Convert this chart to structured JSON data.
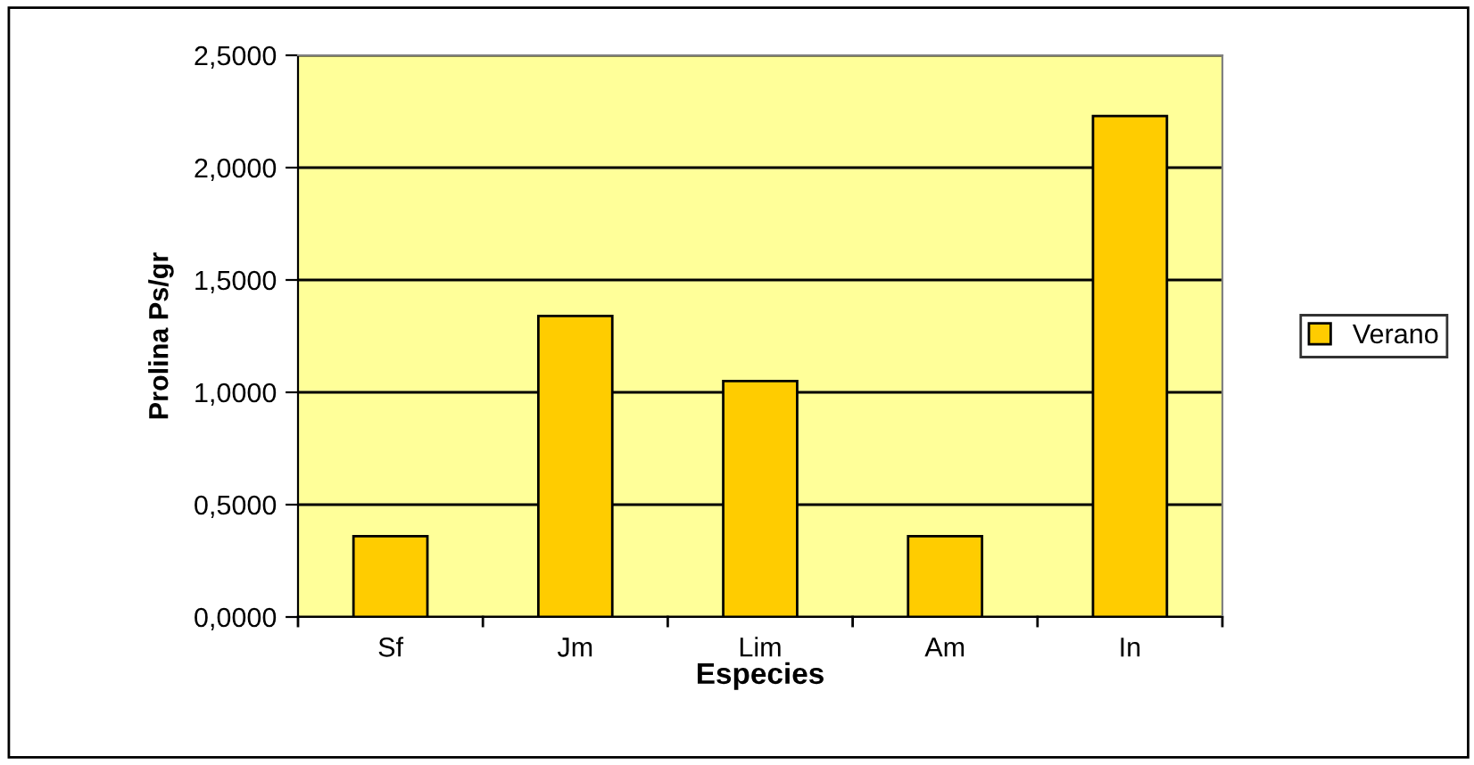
{
  "chart_data": {
    "type": "bar",
    "xlabel": "Especies",
    "ylabel": "Prolina Ps/gr",
    "categories": [
      "Sf",
      "Jm",
      "Lim",
      "Am",
      "In"
    ],
    "series": [
      {
        "name": "Verano",
        "color": "#ffcc00",
        "values": [
          0.36,
          1.34,
          1.05,
          0.36,
          2.23
        ]
      }
    ],
    "ylim": [
      0,
      2.5
    ],
    "yticks": [
      {
        "value": 0,
        "label": "0,0000"
      },
      {
        "value": 0.5,
        "label": "0,5000"
      },
      {
        "value": 1,
        "label": "1,0000"
      },
      {
        "value": 1.5,
        "label": "1,5000"
      },
      {
        "value": 2,
        "label": "2,0000"
      },
      {
        "value": 2.5,
        "label": "2,5000"
      }
    ],
    "grid": "y",
    "legend": "right"
  }
}
